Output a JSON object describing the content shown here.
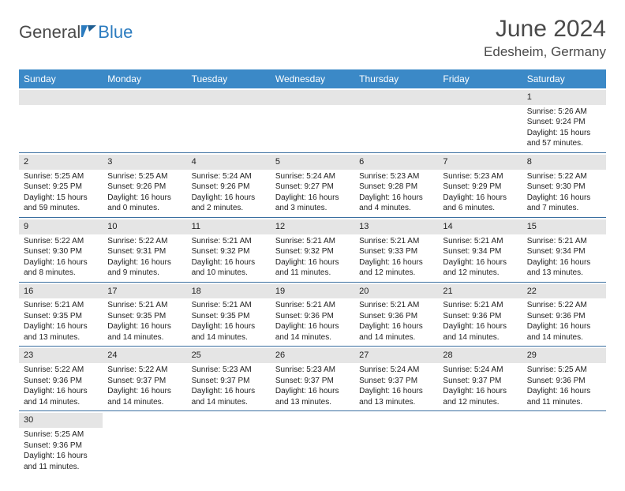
{
  "brand": {
    "part1": "General",
    "part2": "Blue"
  },
  "title": "June 2024",
  "location": "Edesheim, Germany",
  "colors": {
    "header_bg": "#3b89c7",
    "header_fg": "#ffffff",
    "daynum_bg": "#e5e5e5",
    "rule": "#3b6fa0",
    "brand_blue": "#2b7bbf",
    "text": "#4a4a4a"
  },
  "weekdays": [
    "Sunday",
    "Monday",
    "Tuesday",
    "Wednesday",
    "Thursday",
    "Friday",
    "Saturday"
  ],
  "weeks": [
    [
      null,
      null,
      null,
      null,
      null,
      null,
      {
        "d": "1",
        "sr": "Sunrise: 5:26 AM",
        "ss": "Sunset: 9:24 PM",
        "dl": "Daylight: 15 hours and 57 minutes."
      }
    ],
    [
      {
        "d": "2",
        "sr": "Sunrise: 5:25 AM",
        "ss": "Sunset: 9:25 PM",
        "dl": "Daylight: 15 hours and 59 minutes."
      },
      {
        "d": "3",
        "sr": "Sunrise: 5:25 AM",
        "ss": "Sunset: 9:26 PM",
        "dl": "Daylight: 16 hours and 0 minutes."
      },
      {
        "d": "4",
        "sr": "Sunrise: 5:24 AM",
        "ss": "Sunset: 9:26 PM",
        "dl": "Daylight: 16 hours and 2 minutes."
      },
      {
        "d": "5",
        "sr": "Sunrise: 5:24 AM",
        "ss": "Sunset: 9:27 PM",
        "dl": "Daylight: 16 hours and 3 minutes."
      },
      {
        "d": "6",
        "sr": "Sunrise: 5:23 AM",
        "ss": "Sunset: 9:28 PM",
        "dl": "Daylight: 16 hours and 4 minutes."
      },
      {
        "d": "7",
        "sr": "Sunrise: 5:23 AM",
        "ss": "Sunset: 9:29 PM",
        "dl": "Daylight: 16 hours and 6 minutes."
      },
      {
        "d": "8",
        "sr": "Sunrise: 5:22 AM",
        "ss": "Sunset: 9:30 PM",
        "dl": "Daylight: 16 hours and 7 minutes."
      }
    ],
    [
      {
        "d": "9",
        "sr": "Sunrise: 5:22 AM",
        "ss": "Sunset: 9:30 PM",
        "dl": "Daylight: 16 hours and 8 minutes."
      },
      {
        "d": "10",
        "sr": "Sunrise: 5:22 AM",
        "ss": "Sunset: 9:31 PM",
        "dl": "Daylight: 16 hours and 9 minutes."
      },
      {
        "d": "11",
        "sr": "Sunrise: 5:21 AM",
        "ss": "Sunset: 9:32 PM",
        "dl": "Daylight: 16 hours and 10 minutes."
      },
      {
        "d": "12",
        "sr": "Sunrise: 5:21 AM",
        "ss": "Sunset: 9:32 PM",
        "dl": "Daylight: 16 hours and 11 minutes."
      },
      {
        "d": "13",
        "sr": "Sunrise: 5:21 AM",
        "ss": "Sunset: 9:33 PM",
        "dl": "Daylight: 16 hours and 12 minutes."
      },
      {
        "d": "14",
        "sr": "Sunrise: 5:21 AM",
        "ss": "Sunset: 9:34 PM",
        "dl": "Daylight: 16 hours and 12 minutes."
      },
      {
        "d": "15",
        "sr": "Sunrise: 5:21 AM",
        "ss": "Sunset: 9:34 PM",
        "dl": "Daylight: 16 hours and 13 minutes."
      }
    ],
    [
      {
        "d": "16",
        "sr": "Sunrise: 5:21 AM",
        "ss": "Sunset: 9:35 PM",
        "dl": "Daylight: 16 hours and 13 minutes."
      },
      {
        "d": "17",
        "sr": "Sunrise: 5:21 AM",
        "ss": "Sunset: 9:35 PM",
        "dl": "Daylight: 16 hours and 14 minutes."
      },
      {
        "d": "18",
        "sr": "Sunrise: 5:21 AM",
        "ss": "Sunset: 9:35 PM",
        "dl": "Daylight: 16 hours and 14 minutes."
      },
      {
        "d": "19",
        "sr": "Sunrise: 5:21 AM",
        "ss": "Sunset: 9:36 PM",
        "dl": "Daylight: 16 hours and 14 minutes."
      },
      {
        "d": "20",
        "sr": "Sunrise: 5:21 AM",
        "ss": "Sunset: 9:36 PM",
        "dl": "Daylight: 16 hours and 14 minutes."
      },
      {
        "d": "21",
        "sr": "Sunrise: 5:21 AM",
        "ss": "Sunset: 9:36 PM",
        "dl": "Daylight: 16 hours and 14 minutes."
      },
      {
        "d": "22",
        "sr": "Sunrise: 5:22 AM",
        "ss": "Sunset: 9:36 PM",
        "dl": "Daylight: 16 hours and 14 minutes."
      }
    ],
    [
      {
        "d": "23",
        "sr": "Sunrise: 5:22 AM",
        "ss": "Sunset: 9:36 PM",
        "dl": "Daylight: 16 hours and 14 minutes."
      },
      {
        "d": "24",
        "sr": "Sunrise: 5:22 AM",
        "ss": "Sunset: 9:37 PM",
        "dl": "Daylight: 16 hours and 14 minutes."
      },
      {
        "d": "25",
        "sr": "Sunrise: 5:23 AM",
        "ss": "Sunset: 9:37 PM",
        "dl": "Daylight: 16 hours and 14 minutes."
      },
      {
        "d": "26",
        "sr": "Sunrise: 5:23 AM",
        "ss": "Sunset: 9:37 PM",
        "dl": "Daylight: 16 hours and 13 minutes."
      },
      {
        "d": "27",
        "sr": "Sunrise: 5:24 AM",
        "ss": "Sunset: 9:37 PM",
        "dl": "Daylight: 16 hours and 13 minutes."
      },
      {
        "d": "28",
        "sr": "Sunrise: 5:24 AM",
        "ss": "Sunset: 9:37 PM",
        "dl": "Daylight: 16 hours and 12 minutes."
      },
      {
        "d": "29",
        "sr": "Sunrise: 5:25 AM",
        "ss": "Sunset: 9:36 PM",
        "dl": "Daylight: 16 hours and 11 minutes."
      }
    ],
    [
      {
        "d": "30",
        "sr": "Sunrise: 5:25 AM",
        "ss": "Sunset: 9:36 PM",
        "dl": "Daylight: 16 hours and 11 minutes."
      },
      null,
      null,
      null,
      null,
      null,
      null
    ]
  ]
}
